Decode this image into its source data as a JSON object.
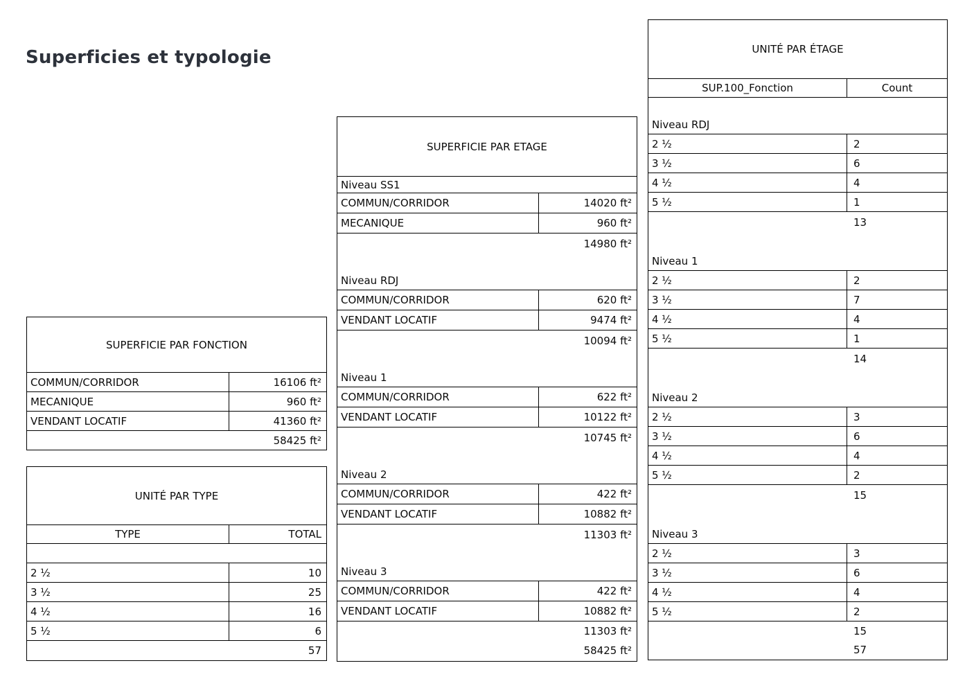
{
  "page_title": "Superficies et typologie",
  "tables": {
    "superficie_par_fonction": {
      "title": "SUPERFICIE PAR FONCTION",
      "rows": [
        {
          "label": "COMMUN/CORRIDOR",
          "value": "16106 ft²"
        },
        {
          "label": "MECANIQUE",
          "value": "960 ft²"
        },
        {
          "label": "VENDANT LOCATIF",
          "value": "41360 ft²"
        }
      ],
      "total": "58425 ft²"
    },
    "unite_par_type": {
      "title": "UNITÉ PAR TYPE",
      "columns": [
        "TYPE",
        "TOTAL"
      ],
      "rows": [
        {
          "label": "2 ½",
          "value": "10"
        },
        {
          "label": "3 ½",
          "value": "25"
        },
        {
          "label": "4 ½",
          "value": "16"
        },
        {
          "label": "5 ½",
          "value": "6"
        }
      ],
      "total": "57"
    },
    "superficie_par_etage": {
      "title": "SUPERFICIE PAR ETAGE",
      "groups": [
        {
          "name": "Niveau SS1",
          "rows": [
            {
              "label": "COMMUN/CORRIDOR",
              "value": "14020 ft²"
            },
            {
              "label": "MECANIQUE",
              "value": "960 ft²"
            }
          ],
          "subtotal": "14980 ft²"
        },
        {
          "name": "Niveau RDJ",
          "rows": [
            {
              "label": "COMMUN/CORRIDOR",
              "value": "620 ft²"
            },
            {
              "label": "VENDANT LOCATIF",
              "value": "9474 ft²"
            }
          ],
          "subtotal": "10094 ft²"
        },
        {
          "name": "Niveau 1",
          "rows": [
            {
              "label": "COMMUN/CORRIDOR",
              "value": "622 ft²"
            },
            {
              "label": "VENDANT LOCATIF",
              "value": "10122 ft²"
            }
          ],
          "subtotal": "10745 ft²"
        },
        {
          "name": "Niveau 2",
          "rows": [
            {
              "label": "COMMUN/CORRIDOR",
              "value": "422 ft²"
            },
            {
              "label": "VENDANT LOCATIF",
              "value": "10882 ft²"
            }
          ],
          "subtotal": "11303 ft²"
        },
        {
          "name": "Niveau 3",
          "rows": [
            {
              "label": "COMMUN/CORRIDOR",
              "value": "422 ft²"
            },
            {
              "label": "VENDANT LOCATIF",
              "value": "10882 ft²"
            }
          ],
          "subtotal": "11303 ft²"
        }
      ],
      "grand_total": "58425 ft²"
    },
    "unite_par_etage": {
      "title": "UNITÉ PAR ÉTAGE",
      "columns": [
        "SUP.100_Fonction",
        "Count"
      ],
      "groups": [
        {
          "name": "Niveau RDJ",
          "rows": [
            {
              "label": "2 ½",
              "value": "2"
            },
            {
              "label": "3 ½",
              "value": "6"
            },
            {
              "label": "4 ½",
              "value": "4"
            },
            {
              "label": "5 ½",
              "value": "1"
            }
          ],
          "subtotal": "13"
        },
        {
          "name": "Niveau 1",
          "rows": [
            {
              "label": "2 ½",
              "value": "2"
            },
            {
              "label": "3 ½",
              "value": "7"
            },
            {
              "label": "4 ½",
              "value": "4"
            },
            {
              "label": "5 ½",
              "value": "1"
            }
          ],
          "subtotal": "14"
        },
        {
          "name": "Niveau 2",
          "rows": [
            {
              "label": "2 ½",
              "value": "3"
            },
            {
              "label": "3 ½",
              "value": "6"
            },
            {
              "label": "4 ½",
              "value": "4"
            },
            {
              "label": "5 ½",
              "value": "2"
            }
          ],
          "subtotal": "15"
        },
        {
          "name": "Niveau 3",
          "rows": [
            {
              "label": "2 ½",
              "value": "3"
            },
            {
              "label": "3 ½",
              "value": "6"
            },
            {
              "label": "4 ½",
              "value": "4"
            },
            {
              "label": "5 ½",
              "value": "2"
            }
          ],
          "subtotal": "15"
        }
      ],
      "grand_total": "57"
    }
  }
}
